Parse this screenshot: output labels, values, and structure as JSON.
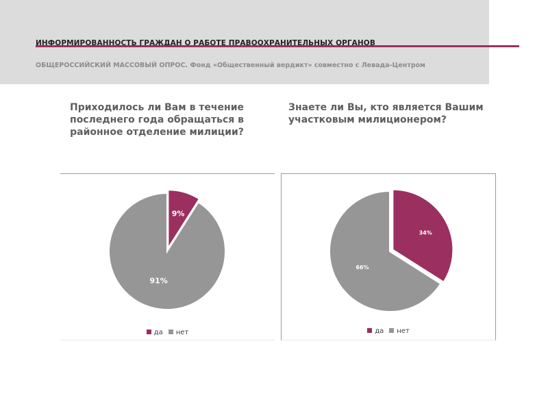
{
  "header": {
    "title": "ИНФОРМИРОВАННОСТЬ ГРАЖДАН О РАБОТЕ ПРАВООХРАНИТЕЛЬНЫХ ОРГАНОВ",
    "subtitle": "ОБЩЕРОССИЙСКИЙ МАССОВЫЙ ОПРОС. Фонд «Общественный вердикт» совместно с Левада-Центром",
    "accent_color": "#9b2f5f",
    "band_color": "#dcdcdc"
  },
  "questions": {
    "left": "Приходилось ли Вам в течение последнего года обращаться в районное отделение милиции?",
    "right": "Знаете ли Вы, кто является Вашим участковым милиционером?"
  },
  "colors": {
    "yes": "#9b2f5f",
    "no": "#969696"
  },
  "chart_data": [
    {
      "type": "pie",
      "legend": "bottom",
      "slices": [
        {
          "label": "да",
          "value": 9,
          "display": "9%",
          "color": "#9b2f5f"
        },
        {
          "label": "нет",
          "value": 91,
          "display": "91%",
          "color": "#969696"
        }
      ]
    },
    {
      "type": "pie",
      "legend": "bottom",
      "slices": [
        {
          "label": "да",
          "value": 34,
          "display": "34%",
          "color": "#9b2f5f"
        },
        {
          "label": "нет",
          "value": 66,
          "display": "66%",
          "color": "#969696"
        }
      ]
    }
  ]
}
